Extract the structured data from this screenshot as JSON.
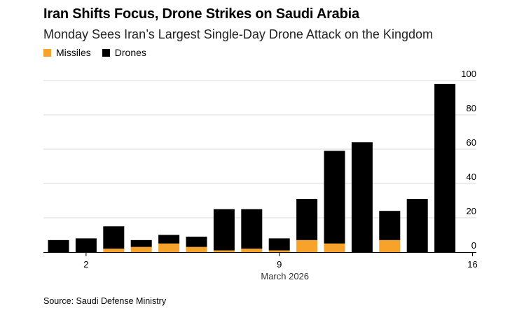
{
  "chart_data": {
    "type": "bar",
    "stacked": true,
    "title": "Iran Shifts Focus, Drone Strikes on Saudi Arabia",
    "subtitle": "Monday Sees Iran’s Largest Single-Day Drone Attack on the Kingdom",
    "xlabel": "March 2026",
    "ylabel": "",
    "ylim": [
      0,
      100
    ],
    "yticks": [
      "0",
      "20",
      "40",
      "60",
      "80",
      "100"
    ],
    "yaxis_side": "right",
    "x": [
      1,
      2,
      3,
      4,
      5,
      6,
      7,
      8,
      9,
      10,
      11,
      12,
      13,
      14,
      15
    ],
    "xtick_labels": [
      {
        "x": 2,
        "label": "2"
      },
      {
        "x": 9,
        "label": "9"
      },
      {
        "x": 16,
        "label": "16"
      }
    ],
    "series": [
      {
        "name": "Missiles",
        "color": "#f7a32b",
        "values": [
          0,
          0,
          2,
          3,
          5,
          3,
          1,
          2,
          1,
          7,
          5,
          0,
          7,
          0,
          0
        ]
      },
      {
        "name": "Drones",
        "color": "#000000",
        "values": [
          7,
          8,
          13,
          4,
          5,
          6,
          24,
          23,
          7,
          24,
          54,
          64,
          17,
          31,
          98
        ]
      }
    ],
    "grid": true,
    "legend_position": "top-left"
  },
  "source": "Source: Saudi Defense Ministry"
}
